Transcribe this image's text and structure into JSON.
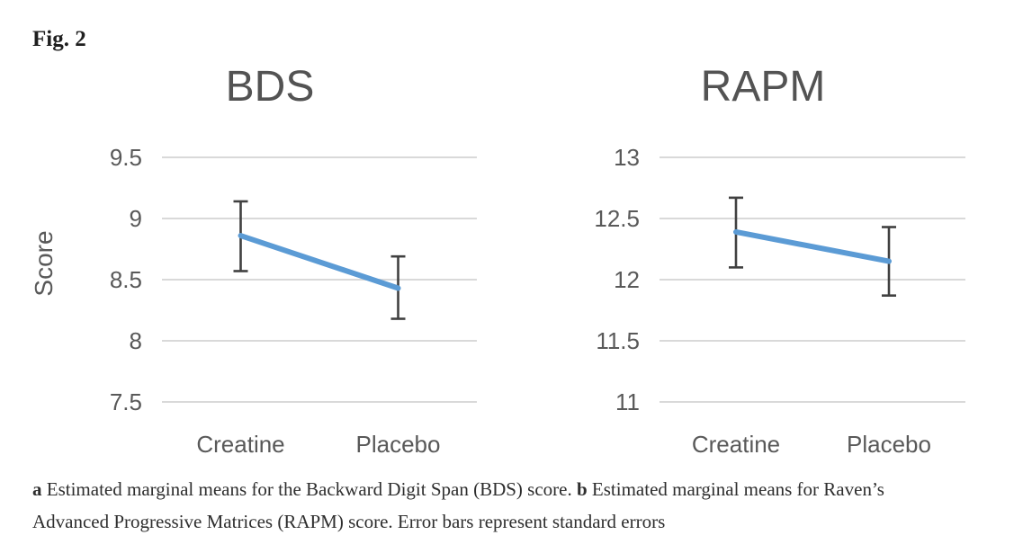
{
  "figure_label": "Fig. 2",
  "caption": {
    "a_label": "a",
    "a_text": "Estimated marginal means for the Backward Digit Span (BDS) score.",
    "b_label": "b",
    "b_text": "Estimated marginal means for Raven’s Advanced Progressive Matrices (RAPM) score. Error bars represent standard errors"
  },
  "colors": {
    "line": "#5B9BD5",
    "error_bar": "#404040",
    "gridline": "#D9D9D9",
    "axis_text": "#595959",
    "title_text": "#535353"
  },
  "chart_data": [
    {
      "type": "line",
      "title": "BDS",
      "xlabel": "",
      "ylabel": "Score",
      "categories": [
        "Creatine",
        "Placebo"
      ],
      "series": [
        {
          "name": "Estimated marginal mean",
          "values": [
            8.86,
            8.43
          ],
          "error_upper": [
            9.14,
            8.69
          ],
          "error_lower": [
            8.57,
            8.18
          ]
        }
      ],
      "yticks": [
        9.5,
        9,
        8.5,
        8,
        7.5
      ],
      "ylim": [
        7.5,
        9.5
      ],
      "grid": true,
      "legend_position": "none"
    },
    {
      "type": "line",
      "title": "RAPM",
      "xlabel": "",
      "ylabel": "",
      "categories": [
        "Creatine",
        "Placebo"
      ],
      "series": [
        {
          "name": "Estimated marginal mean",
          "values": [
            12.39,
            12.15
          ],
          "error_upper": [
            12.67,
            12.43
          ],
          "error_lower": [
            12.1,
            11.87
          ]
        }
      ],
      "yticks": [
        13,
        12.5,
        12,
        11.5,
        11
      ],
      "ylim": [
        11,
        13
      ],
      "grid": true,
      "legend_position": "none"
    }
  ]
}
